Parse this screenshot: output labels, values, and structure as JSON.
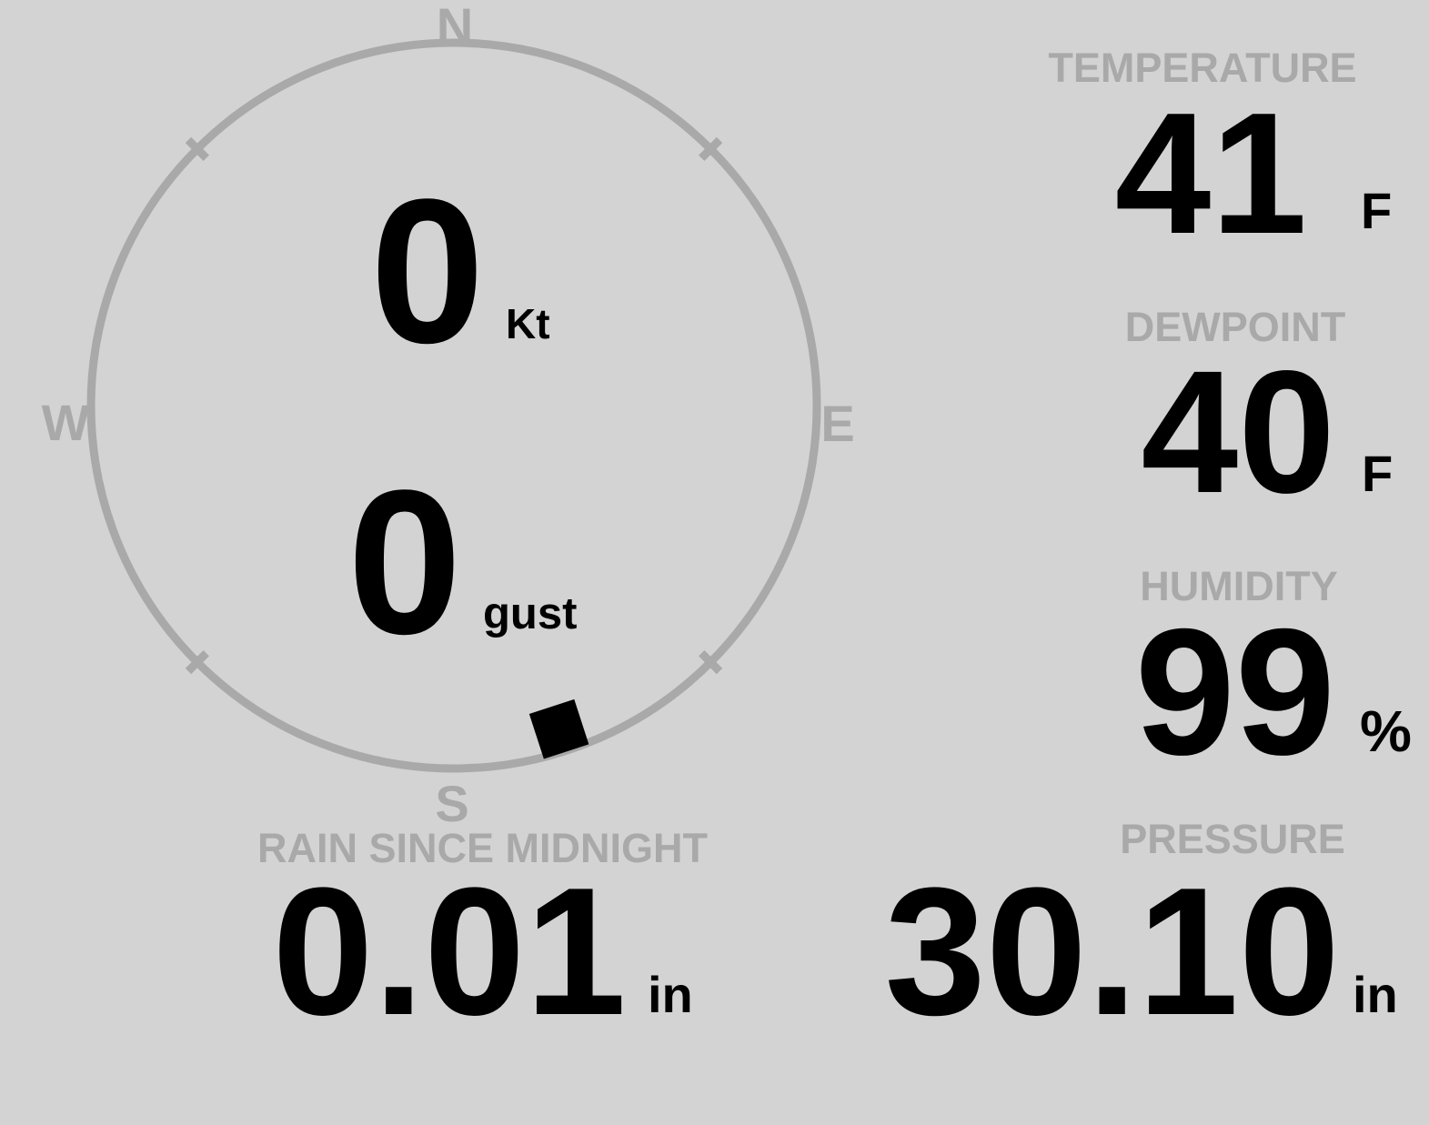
{
  "display": {
    "background_color": "#d3d3d3",
    "gray_color": "#a9a9a9",
    "text_color": "#000000"
  },
  "compass": {
    "directions": {
      "north": "N",
      "east": "E",
      "south": "S",
      "west": "W"
    },
    "wind_speed": {
      "value": "0",
      "unit": "Kt"
    },
    "wind_gust": {
      "value": "0",
      "unit": "gust"
    },
    "wind_direction_deg": 162
  },
  "metrics": {
    "temperature": {
      "label": "TEMPERATURE",
      "value": "41",
      "unit": "F"
    },
    "dewpoint": {
      "label": "DEWPOINT",
      "value": "40",
      "unit": "F"
    },
    "humidity": {
      "label": "HUMIDITY",
      "value": "99",
      "unit": "%"
    },
    "rain": {
      "label": "RAIN SINCE MIDNIGHT",
      "value": "0.01",
      "unit": "in"
    },
    "pressure": {
      "label": "PRESSURE",
      "value": "30.10",
      "unit": "in"
    }
  }
}
